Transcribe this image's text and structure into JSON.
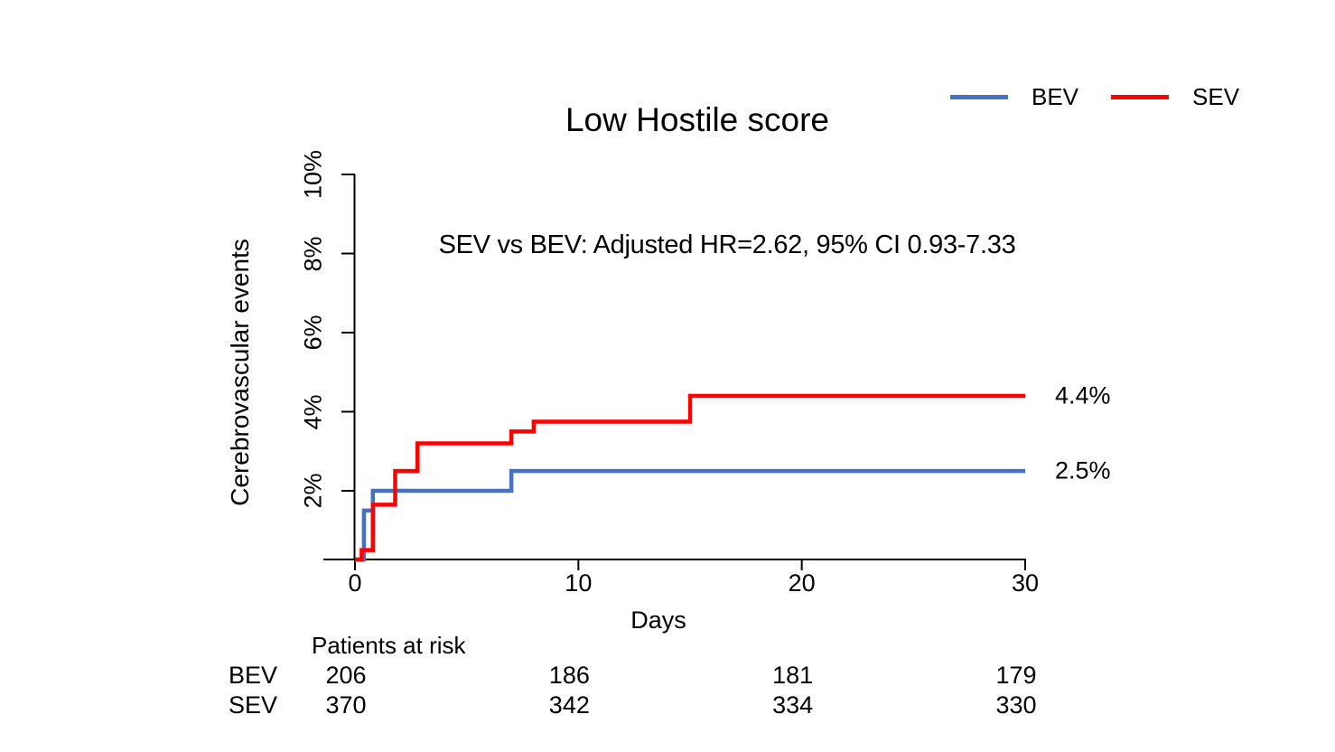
{
  "chart_data": {
    "type": "line",
    "subtype": "step-function cumulative incidence (Kaplan-Meier style)",
    "title": "Low Hostile score",
    "annotation": "SEV vs BEV: Adjusted HR=2.62, 95% CI 0.93-7.33",
    "xlabel": "Days",
    "ylabel": "Cerebrovascular events",
    "xlim": [
      0,
      30
    ],
    "ylim_percent": [
      0,
      10
    ],
    "grid": false,
    "legend_position": "top-right",
    "x_ticks": [
      {
        "value": 0,
        "label": "0"
      },
      {
        "value": 10,
        "label": "10"
      },
      {
        "value": 20,
        "label": "20"
      },
      {
        "value": 30,
        "label": "30"
      }
    ],
    "y_ticks": [
      {
        "value": 2,
        "label": "2%"
      },
      {
        "value": 4,
        "label": "4%"
      },
      {
        "value": 6,
        "label": "6%"
      },
      {
        "value": 8,
        "label": "8%"
      },
      {
        "value": 10,
        "label": "10%"
      }
    ],
    "series": [
      {
        "name": "BEV",
        "color": "#4472C4",
        "end_label": "2.5%",
        "final_value_percent": 2.5,
        "steps_day_percent": [
          [
            0,
            0
          ],
          [
            0.4,
            1.5
          ],
          [
            0.8,
            2.0
          ],
          [
            7,
            2.5
          ]
        ]
      },
      {
        "name": "SEV",
        "color": "#FF0000",
        "end_label": "4.4%",
        "final_value_percent": 4.4,
        "steps_day_percent": [
          [
            0,
            0
          ],
          [
            0.3,
            0.5
          ],
          [
            0.8,
            1.65
          ],
          [
            1.8,
            2.5
          ],
          [
            2.8,
            3.2
          ],
          [
            7,
            3.5
          ],
          [
            8,
            3.75
          ],
          [
            15,
            4.4
          ]
        ]
      }
    ],
    "risk_table": {
      "header": "Patients at risk",
      "time_points": [
        0,
        10,
        20,
        30
      ],
      "rows": [
        {
          "label": "BEV",
          "values": [
            "206",
            "186",
            "181",
            "179"
          ]
        },
        {
          "label": "SEV",
          "values": [
            "370",
            "342",
            "334",
            "330"
          ]
        }
      ]
    }
  }
}
